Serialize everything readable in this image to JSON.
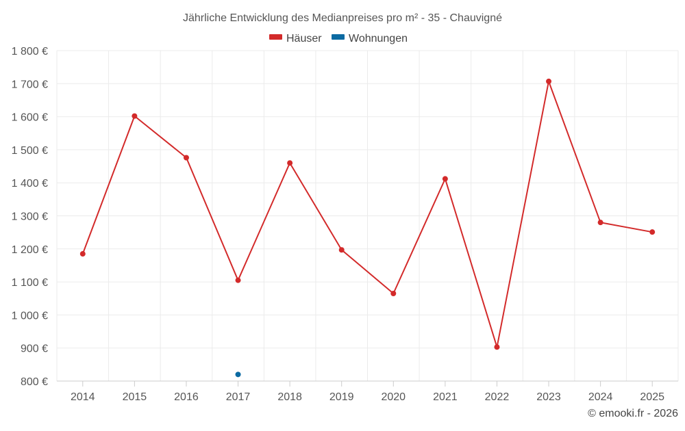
{
  "chart_data": {
    "type": "line",
    "title": "Jährliche Entwicklung des Medianpreises pro m² - 35 - Chauvigné",
    "categories": [
      "2014",
      "2015",
      "2016",
      "2017",
      "2018",
      "2019",
      "2020",
      "2021",
      "2022",
      "2023",
      "2024",
      "2025"
    ],
    "series": [
      {
        "name": "Häuser",
        "color": "#d32a2a",
        "values": [
          1185,
          1602,
          1476,
          1105,
          1460,
          1197,
          1065,
          1412,
          903,
          1707,
          1280,
          1251
        ]
      },
      {
        "name": "Wohnungen",
        "color": "#0b6aa2",
        "values": [
          null,
          null,
          null,
          820,
          null,
          null,
          null,
          null,
          null,
          null,
          null,
          null
        ]
      }
    ],
    "ylim": [
      800,
      1800
    ],
    "yticks": [
      800,
      900,
      1000,
      1100,
      1200,
      1300,
      1400,
      1500,
      1600,
      1700,
      1800
    ],
    "ytick_labels": [
      "800 €",
      "900 €",
      "1 000 €",
      "1 100 €",
      "1 200 €",
      "1 300 €",
      "1 400 €",
      "1 500 €",
      "1 600 €",
      "1 700 €",
      "1 800 €"
    ],
    "grid": true,
    "legend": "top-center",
    "xlabel": "",
    "ylabel": ""
  },
  "credit": "© emooki.fr - 2026"
}
